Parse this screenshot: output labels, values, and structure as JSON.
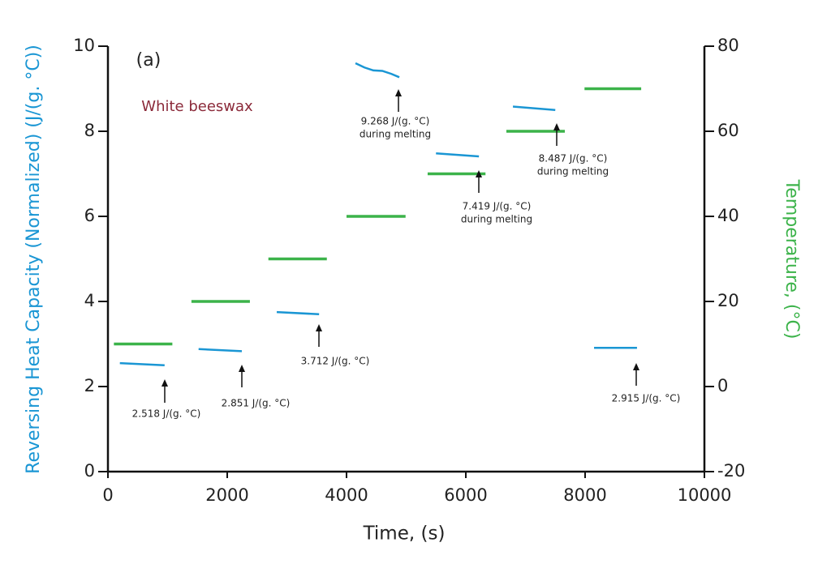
{
  "chart_data": {
    "type": "line",
    "annotations": [
      "(a)",
      "White beeswax"
    ],
    "value_notes": [
      [
        "2.518 J/(g. °C)"
      ],
      [
        "2.851 J/(g. °C)"
      ],
      [
        "3.712 J/(g. °C)"
      ],
      [
        "9.268 J/(g. °C)",
        "during melting"
      ],
      [
        "7.419 J/(g. °C)",
        "during melting"
      ],
      [
        "8.487 J/(g. °C)",
        "during melting"
      ],
      [
        "2.915 J/(g. °C)"
      ]
    ],
    "x_label": "Time, (s)",
    "y_label": "Reversing Heat Capacity (Normalized) (J/(g. °C))",
    "y2_label": "Temperature, (°C)",
    "xlim": [
      0,
      10000
    ],
    "xticks": [
      0,
      2000,
      4000,
      6000,
      8000,
      10000
    ],
    "ylim": [
      0,
      10
    ],
    "yticks": [
      0,
      2,
      4,
      6,
      8,
      10
    ],
    "y2lim": [
      -20,
      80
    ],
    "y2ticks": [
      -20,
      0,
      20,
      40,
      60,
      80
    ],
    "series": [
      {
        "color": "#1a96d4",
        "x": [
          200,
          950
        ],
        "values": [
          2.55,
          2.5
        ]
      },
      {
        "color": "#1a96d4",
        "x": [
          1520,
          2245
        ],
        "values": [
          2.88,
          2.83
        ]
      },
      {
        "color": "#1a96d4",
        "x": [
          2830,
          3540
        ],
        "values": [
          3.75,
          3.7
        ]
      },
      {
        "color": "#1a96d4",
        "x": [
          4150,
          4300,
          4450,
          4600,
          4750,
          4885
        ],
        "values": [
          9.6,
          9.5,
          9.43,
          9.42,
          9.35,
          9.27
        ]
      },
      {
        "color": "#1a96d4",
        "x": [
          5500,
          6220
        ],
        "values": [
          7.48,
          7.41
        ]
      },
      {
        "color": "#1a96d4",
        "x": [
          6790,
          7500
        ],
        "values": [
          8.58,
          8.5
        ]
      },
      {
        "color": "#1a96d4",
        "x": [
          8150,
          8870
        ],
        "values": [
          2.91,
          2.91
        ]
      },
      {
        "color": "#3cb34a",
        "axis": "y2",
        "x": [
          100,
          1080
        ],
        "values": [
          10,
          10
        ]
      },
      {
        "color": "#3cb34a",
        "axis": "y2",
        "x": [
          1400,
          2380
        ],
        "values": [
          20,
          20
        ]
      },
      {
        "color": "#3cb34a",
        "axis": "y2",
        "x": [
          2690,
          3670
        ],
        "values": [
          30,
          30
        ]
      },
      {
        "color": "#3cb34a",
        "axis": "y2",
        "x": [
          4000,
          4990
        ],
        "values": [
          40,
          40
        ]
      },
      {
        "color": "#3cb34a",
        "axis": "y2",
        "x": [
          5360,
          6330
        ],
        "values": [
          50,
          50
        ]
      },
      {
        "color": "#3cb34a",
        "axis": "y2",
        "x": [
          6680,
          7660
        ],
        "values": [
          60,
          60
        ]
      },
      {
        "color": "#3cb34a",
        "axis": "y2",
        "x": [
          7990,
          8940
        ],
        "values": [
          70,
          70
        ]
      }
    ]
  }
}
